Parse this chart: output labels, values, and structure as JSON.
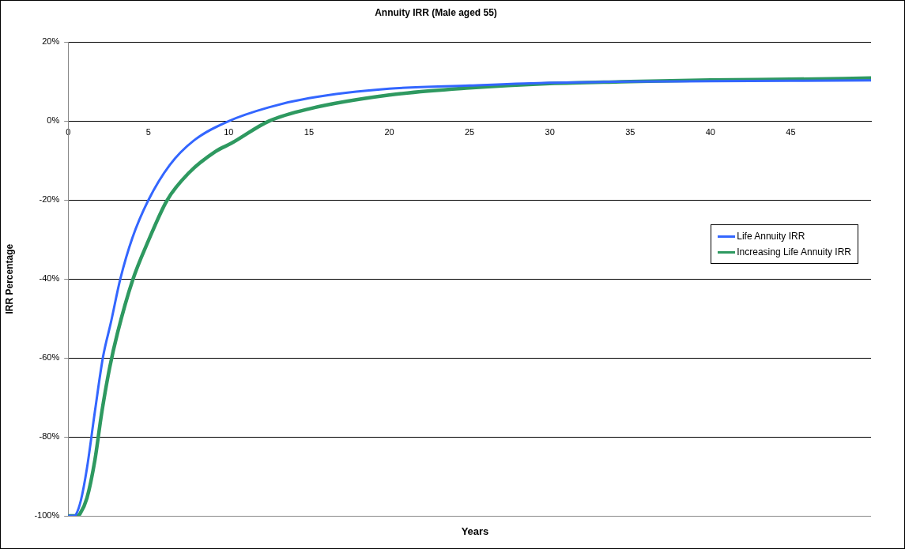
{
  "chart_data": {
    "type": "line",
    "title": "Annuity IRR (Male aged 55)",
    "xlabel": "Years",
    "ylabel": "IRR Percentage",
    "xlim": [
      0,
      50
    ],
    "xticks": [
      0,
      5,
      10,
      15,
      20,
      25,
      30,
      35,
      40,
      45
    ],
    "ylim": [
      -100,
      20
    ],
    "yticks": [
      {
        "value": -100,
        "label": "-100%"
      },
      {
        "value": -80,
        "label": "-80%"
      },
      {
        "value": -60,
        "label": "-60%"
      },
      {
        "value": -40,
        "label": "-40%"
      },
      {
        "value": -20,
        "label": "-20%"
      },
      {
        "value": 0,
        "label": "0%"
      },
      {
        "value": 20,
        "label": "20%"
      }
    ],
    "grid": "y",
    "legend": "right",
    "marker": "none",
    "line_style": "solid",
    "series": [
      {
        "name": "Life Annuity IRR",
        "color": "#3366ff",
        "x": [
          0,
          0.4,
          0.5,
          0.8,
          1.17,
          1.67,
          2.17,
          2.67,
          3.25,
          4,
          5,
          6.33,
          7.83,
          10,
          12.5,
          15,
          20,
          25,
          30,
          35,
          40,
          45,
          50
        ],
        "values": [
          -100,
          -100,
          -99.6,
          -96,
          -88,
          -73.5,
          -59.8,
          -50.9,
          -40,
          -29.6,
          -20,
          -11.1,
          -4.9,
          0,
          3.5,
          5.8,
          8.2,
          9,
          9.7,
          10,
          10.1,
          10.2,
          10.3
        ]
      },
      {
        "name": "Increasing Life Annuity IRR",
        "color": "#2e9960",
        "x": [
          0,
          0.6,
          0.75,
          1.17,
          1.67,
          2.08,
          2.58,
          3.08,
          4,
          5,
          6.17,
          7.5,
          9.17,
          10.17,
          12.5,
          15,
          20,
          25,
          30,
          35,
          40,
          45,
          50
        ],
        "values": [
          -100,
          -100,
          -99.4,
          -95.5,
          -85.8,
          -74.2,
          -62.6,
          -53.6,
          -40.5,
          -30.3,
          -20,
          -13.2,
          -7.7,
          -5.6,
          0,
          3.1,
          6.6,
          8.4,
          9.5,
          10,
          10.4,
          10.6,
          10.9
        ]
      }
    ]
  }
}
